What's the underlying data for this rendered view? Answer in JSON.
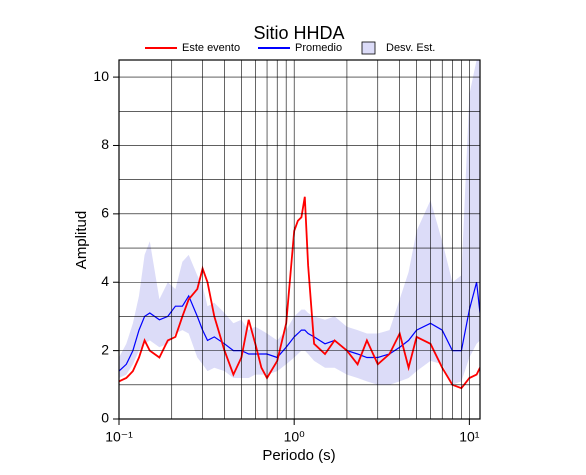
{
  "chart_data": {
    "type": "line",
    "title": "Sitio HHDA",
    "xlabel": "Periodo (s)",
    "ylabel": "Amplitud",
    "xscale": "log",
    "grid": true,
    "xlim": [
      0.1,
      11.5
    ],
    "ylim": [
      0,
      10.5
    ],
    "xticks": [
      {
        "value": 0.1,
        "label": "10⁻¹"
      },
      {
        "value": 1,
        "label": "10⁰"
      },
      {
        "value": 10,
        "label": "10¹"
      }
    ],
    "xminorticks": [
      0.2,
      0.3,
      0.4,
      0.5,
      0.6,
      0.7,
      0.8,
      0.9,
      2,
      3,
      4,
      5,
      6,
      7,
      8,
      9
    ],
    "yticks": [
      0,
      2,
      4,
      6,
      8,
      10
    ],
    "yminorticks": [
      1,
      3,
      5,
      7,
      9
    ],
    "x": [
      0.1,
      0.11,
      0.12,
      0.13,
      0.14,
      0.15,
      0.17,
      0.19,
      0.21,
      0.23,
      0.25,
      0.28,
      0.3,
      0.32,
      0.35,
      0.4,
      0.45,
      0.5,
      0.55,
      0.6,
      0.65,
      0.7,
      0.8,
      0.9,
      1.0,
      1.05,
      1.1,
      1.15,
      1.2,
      1.3,
      1.5,
      1.7,
      2,
      2.3,
      2.6,
      3,
      3.5,
      4,
      4.5,
      5,
      6,
      7,
      8,
      9,
      10,
      11,
      11.5
    ],
    "band": {
      "name": "Desv. Est.",
      "color": "#dcdcf8",
      "lower": [
        1.2,
        1.3,
        1.6,
        2.0,
        2.2,
        2.3,
        2.1,
        2.2,
        2.5,
        2.6,
        2.5,
        1.8,
        1.6,
        1.4,
        1.5,
        1.4,
        1.2,
        1.2,
        1.2,
        1.3,
        1.3,
        1.3,
        1.4,
        1.6,
        1.8,
        1.9,
        2.0,
        2.0,
        1.9,
        1.7,
        1.5,
        1.5,
        1.3,
        1.2,
        1.1,
        1.0,
        1.0,
        1.1,
        1.2,
        1.4,
        1.7,
        1.6,
        1.0,
        1.1,
        1.8,
        2.2,
        2.3
      ],
      "upper": [
        1.8,
        2.2,
        2.8,
        3.6,
        4.8,
        5.2,
        3.5,
        4.0,
        3.8,
        4.6,
        4.8,
        4.2,
        3.9,
        3.3,
        3.4,
        3.1,
        2.8,
        2.9,
        2.6,
        2.7,
        2.6,
        2.5,
        2.3,
        2.6,
        3.0,
        3.1,
        3.2,
        3.2,
        3.1,
        3.0,
        2.9,
        3.0,
        2.7,
        2.6,
        2.5,
        2.5,
        2.6,
        3.5,
        4.3,
        5.5,
        6.4,
        5.2,
        4.0,
        4.2,
        9.5,
        10.5,
        10.5
      ]
    },
    "series": [
      {
        "name": "Este evento",
        "color": "#ff0000",
        "values": [
          1.1,
          1.2,
          1.4,
          1.8,
          2.3,
          2.0,
          1.8,
          2.3,
          2.4,
          3.0,
          3.5,
          3.8,
          4.4,
          4.0,
          3.0,
          2.0,
          1.3,
          1.8,
          2.9,
          2.2,
          1.5,
          1.2,
          1.7,
          2.8,
          5.5,
          5.8,
          5.9,
          6.5,
          4.5,
          2.2,
          1.9,
          2.3,
          2.0,
          1.6,
          2.3,
          1.6,
          1.9,
          2.5,
          1.5,
          2.4,
          2.2,
          1.5,
          1.0,
          0.9,
          1.2,
          1.3,
          1.5
        ]
      },
      {
        "name": "Promedio",
        "color": "#0000ff",
        "values": [
          1.4,
          1.6,
          2.0,
          2.6,
          3.0,
          3.1,
          2.9,
          3.0,
          3.3,
          3.3,
          3.6,
          3.0,
          2.6,
          2.3,
          2.4,
          2.2,
          2.0,
          2.0,
          1.9,
          1.9,
          1.9,
          1.9,
          1.8,
          2.1,
          2.4,
          2.5,
          2.6,
          2.6,
          2.5,
          2.4,
          2.2,
          2.3,
          2.0,
          1.9,
          1.8,
          1.8,
          1.9,
          2.1,
          2.3,
          2.6,
          2.8,
          2.6,
          2.0,
          2.0,
          3.2,
          4.0,
          3.1
        ]
      }
    ]
  }
}
